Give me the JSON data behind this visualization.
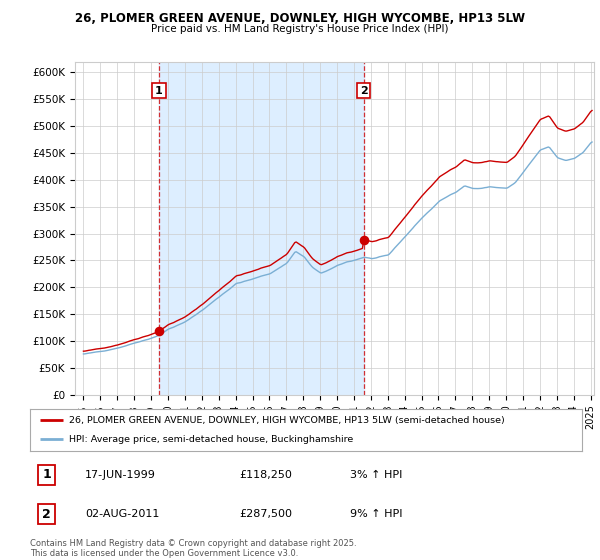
{
  "title1": "26, PLOMER GREEN AVENUE, DOWNLEY, HIGH WYCOMBE, HP13 5LW",
  "title2": "Price paid vs. HM Land Registry's House Price Index (HPI)",
  "ylim": [
    0,
    620000
  ],
  "yticks": [
    0,
    50000,
    100000,
    150000,
    200000,
    250000,
    300000,
    350000,
    400000,
    450000,
    500000,
    550000,
    600000
  ],
  "ytick_labels": [
    "£0",
    "£50K",
    "£100K",
    "£150K",
    "£200K",
    "£250K",
    "£300K",
    "£350K",
    "£400K",
    "£450K",
    "£500K",
    "£550K",
    "£600K"
  ],
  "sale1_date": 1999.46,
  "sale1_price": 118250,
  "sale2_date": 2011.58,
  "sale2_price": 287500,
  "line_color_red": "#cc0000",
  "line_color_blue": "#7bafd4",
  "dot_color_red": "#cc0000",
  "grid_color": "#cccccc",
  "bg_color": "#ffffff",
  "shade_color": "#ddeeff",
  "legend_label_red": "26, PLOMER GREEN AVENUE, DOWNLEY, HIGH WYCOMBE, HP13 5LW (semi-detached house)",
  "legend_label_blue": "HPI: Average price, semi-detached house, Buckinghamshire",
  "info1": "17-JUN-1999",
  "info1_price": "£118,250",
  "info1_hpi": "3% ↑ HPI",
  "info2": "02-AUG-2011",
  "info2_price": "£287,500",
  "info2_hpi": "9% ↑ HPI",
  "footer": "Contains HM Land Registry data © Crown copyright and database right 2025.\nThis data is licensed under the Open Government Licence v3.0.",
  "xmin": 1995.0,
  "xmax": 2025.2
}
